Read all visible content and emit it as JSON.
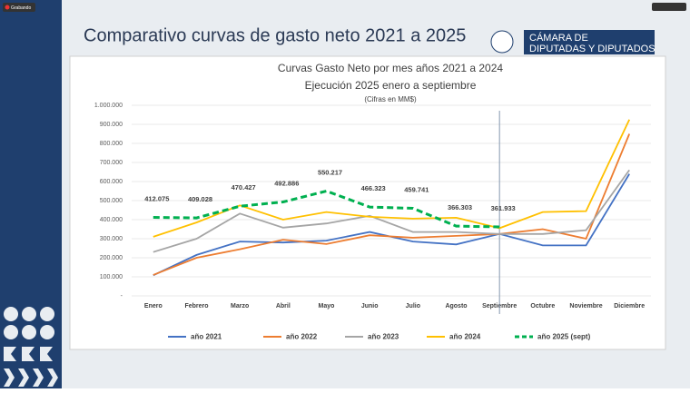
{
  "recording_label": "Grabando",
  "slide_title": "Comparativo curvas de gasto neto 2021 a 2025",
  "logo_text": [
    "CÁMARA DE",
    "DIPUTADAS Y DIPUTADOS"
  ],
  "chart_data": {
    "type": "line",
    "title": [
      "Curvas Gasto Neto por mes años 2021 a 2024",
      "Ejecución 2025 enero a septiembre"
    ],
    "subtitle": "(Cifras en MM$)",
    "categories": [
      "Enero",
      "Febrero",
      "Marzo",
      "Abril",
      "Mayo",
      "Junio",
      "Julio",
      "Agosto",
      "Septiembre",
      "Octubre",
      "Noviembre",
      "Diciembre"
    ],
    "ylim": [
      0,
      1000000
    ],
    "yticks": [
      {
        "value": 0,
        "label": "-"
      },
      {
        "value": 100000,
        "label": "100.000"
      },
      {
        "value": 200000,
        "label": "200.000"
      },
      {
        "value": 300000,
        "label": "300.000"
      },
      {
        "value": 400000,
        "label": "400.000"
      },
      {
        "value": 500000,
        "label": "500.000"
      },
      {
        "value": 600000,
        "label": "600.000"
      },
      {
        "value": 700000,
        "label": "700.000"
      },
      {
        "value": 800000,
        "label": "800.000"
      },
      {
        "value": 900000,
        "label": "900.000"
      },
      {
        "value": 1000000,
        "label": "1.000.000"
      }
    ],
    "grid": true,
    "legend": "bottom",
    "series": [
      {
        "name": "año 2021",
        "color": "#4472c4",
        "values": [
          108000,
          215000,
          285000,
          280000,
          290000,
          335000,
          285000,
          270000,
          325000,
          265000,
          265000,
          640000
        ]
      },
      {
        "name": "año 2022",
        "color": "#ed7d31",
        "values": [
          110000,
          200000,
          245000,
          295000,
          272000,
          318000,
          305000,
          315000,
          325000,
          350000,
          300000,
          850000
        ]
      },
      {
        "name": "año 2023",
        "color": "#a5a5a5",
        "values": [
          230000,
          300000,
          432000,
          358000,
          380000,
          420000,
          335000,
          335000,
          325000,
          325000,
          345000,
          660000
        ]
      },
      {
        "name": "año 2024",
        "color": "#ffc000",
        "values": [
          310000,
          385000,
          475000,
          400000,
          440000,
          415000,
          405000,
          410000,
          355000,
          440000,
          445000,
          925000
        ]
      },
      {
        "name": "año 2025 (sept)",
        "color": "#00b050",
        "dashed": true,
        "values": [
          412075,
          409028,
          470427,
          492886,
          550217,
          466323,
          459741,
          366303,
          361933,
          null,
          null,
          null
        ],
        "value_labels": [
          "412.075",
          "409.028",
          "470.427",
          "492.886",
          "550.217",
          "466.323",
          "459.741",
          "366.303",
          "361.933",
          null,
          null,
          null
        ]
      }
    ]
  }
}
